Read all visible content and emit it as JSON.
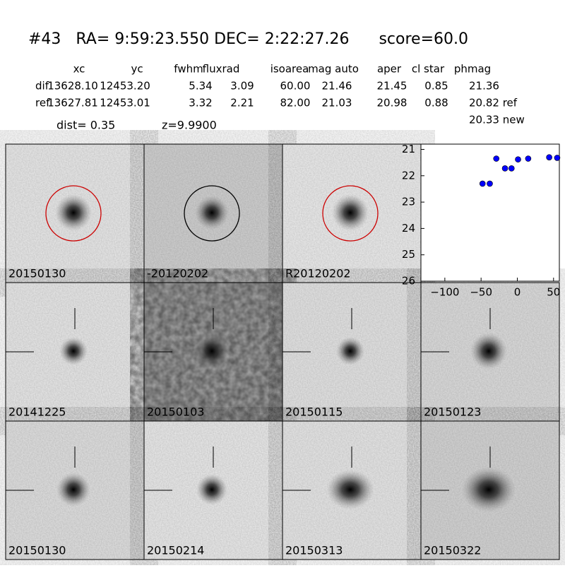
{
  "header": {
    "title": "#43   RA= 9:59:23.550 DEC= 2:22:27.26      score=60.0"
  },
  "table": {
    "columns": [
      "xc",
      "yc",
      "fwhm",
      "fluxrad",
      "isoarea",
      "mag auto",
      "aper",
      "cl star",
      "phmag"
    ],
    "rows": [
      [
        "dif",
        "13628.10",
        "12453.20",
        "5.34",
        "3.09",
        "60.00",
        "21.46",
        "21.45",
        "0.85",
        "21.36"
      ],
      [
        "ref",
        "13627.81",
        "12453.01",
        "3.32",
        "2.21",
        "82.00",
        "21.03",
        "20.98",
        "0.88",
        "20.82 ref"
      ]
    ]
  },
  "notes": {
    "dist": "dist=  0.35",
    "z": "z=9.9900",
    "new": "20.33 new"
  },
  "stamps": [
    {
      "label": "20150130"
    },
    {
      "label": "-20120202"
    },
    {
      "label": "R20120202"
    },
    {
      "label": "20141225"
    },
    {
      "label": "20150103"
    },
    {
      "label": "20150115"
    },
    {
      "label": "20150123"
    },
    {
      "label": "20150130",
      "label_color": "#ff0000"
    },
    {
      "label": "20150214"
    },
    {
      "label": "20150313"
    },
    {
      "label": "20150322"
    }
  ],
  "chart_data": {
    "type": "scatter",
    "color": "#0000ff",
    "x": [
      -48,
      -38,
      -29,
      -17,
      -8,
      1,
      15,
      44,
      55
    ],
    "values": [
      22.3,
      22.3,
      21.35,
      21.72,
      21.72,
      21.38,
      21.35,
      21.3,
      21.32
    ],
    "xlim": [
      -133,
      58
    ],
    "ylim": [
      26,
      20.8
    ],
    "xticks": [
      {
        "value": -100,
        "label": "−100"
      },
      {
        "value": -50,
        "label": "−50"
      },
      0,
      50
    ],
    "yticks": [
      21,
      22,
      23,
      24,
      25,
      26
    ]
  }
}
